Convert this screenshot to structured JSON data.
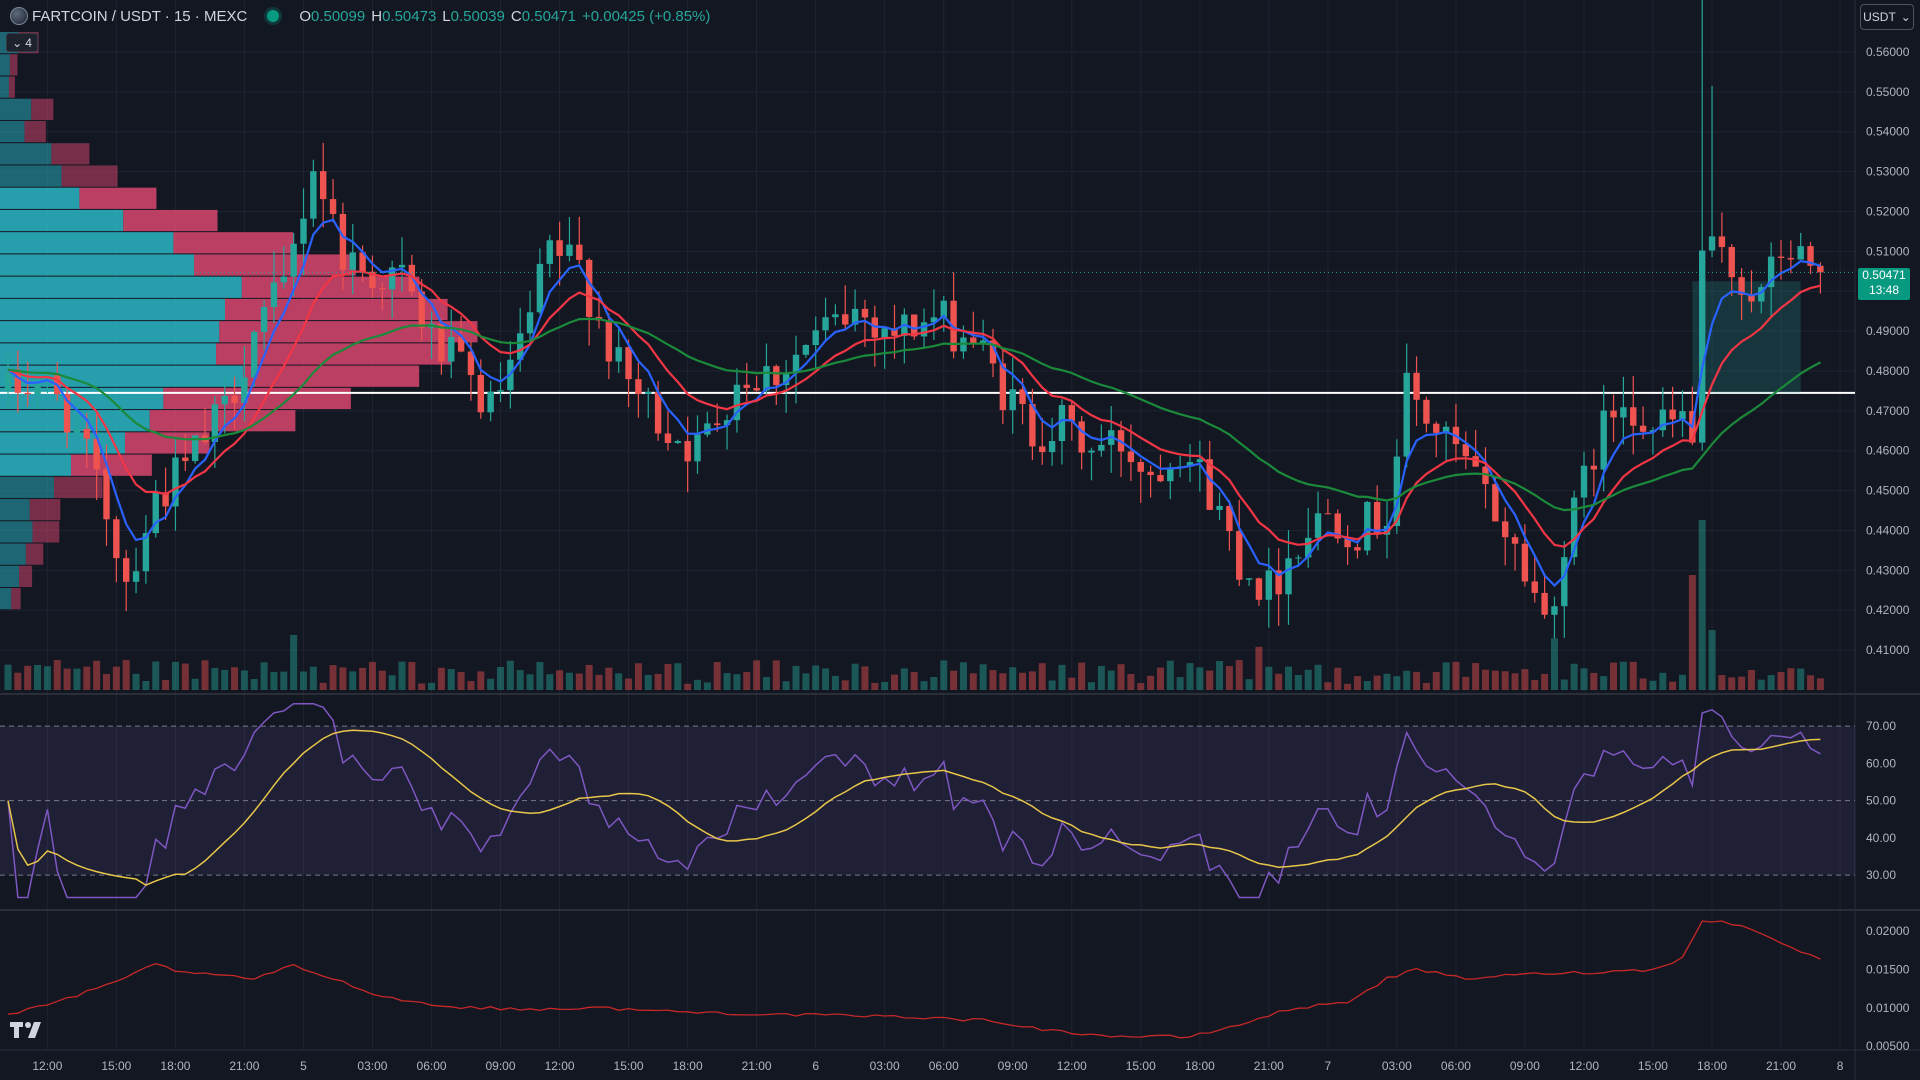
{
  "header": {
    "symbol": "FARTCOIN / USDT · 15 · MEXC",
    "open_label": "O",
    "open": "0.50099",
    "high_label": "H",
    "high": "0.50473",
    "low_label": "L",
    "low": "0.50039",
    "close_label": "C",
    "close": "0.50471",
    "change": "+0.00425 (+0.85%)"
  },
  "controls": {
    "collapse_count": "4",
    "currency": "USDT"
  },
  "last_price": {
    "price": "0.50471",
    "countdown": "13:48"
  },
  "colors": {
    "background": "#131722",
    "up": "#26a69a",
    "down": "#ef5350",
    "ema_fast": "#2962ff",
    "ema_mid": "#f23645",
    "ema_slow": "#1b8a3a",
    "rsi": "#7e57c2",
    "rsi_ma": "#e7c64a",
    "atr": "#c62828",
    "vp_up": "#2ab6c4",
    "vp_down": "#d9456f"
  },
  "icons": {
    "logo": "tradingview-logo-icon",
    "collapse": "chevron-down-icon",
    "currency": "chevron-down-icon"
  },
  "chart_data": [
    {
      "type": "candlestick",
      "price_axis": {
        "ticks": [
          "0.56000",
          "0.55000",
          "0.54000",
          "0.53000",
          "0.52000",
          "0.51000",
          "0.50000",
          "0.49000",
          "0.48000",
          "0.47000",
          "0.46000",
          "0.45000",
          "0.44000",
          "0.43000",
          "0.42000",
          "0.41000"
        ],
        "range": [
          0.4,
          0.565
        ]
      },
      "horizontal_line": 0.4745,
      "price_anchors": [
        [
          0,
          0.475
        ],
        [
          3,
          0.478
        ],
        [
          6,
          0.47
        ],
        [
          10,
          0.445
        ],
        [
          12,
          0.428
        ],
        [
          15,
          0.448
        ],
        [
          18,
          0.456
        ],
        [
          22,
          0.47
        ],
        [
          25,
          0.49
        ],
        [
          28,
          0.5
        ],
        [
          31,
          0.532
        ],
        [
          34,
          0.51
        ],
        [
          36,
          0.505
        ],
        [
          40,
          0.503
        ],
        [
          43,
          0.488
        ],
        [
          46,
          0.48
        ],
        [
          49,
          0.47
        ],
        [
          52,
          0.485
        ],
        [
          55,
          0.51
        ],
        [
          58,
          0.506
        ],
        [
          62,
          0.48
        ],
        [
          66,
          0.468
        ],
        [
          70,
          0.46
        ],
        [
          74,
          0.478
        ],
        [
          78,
          0.48
        ],
        [
          82,
          0.488
        ],
        [
          86,
          0.495
        ],
        [
          90,
          0.49
        ],
        [
          94,
          0.493
        ],
        [
          98,
          0.488
        ],
        [
          101,
          0.475
        ],
        [
          104,
          0.465
        ],
        [
          107,
          0.466
        ],
        [
          110,
          0.46
        ],
        [
          113,
          0.462
        ],
        [
          116,
          0.455
        ],
        [
          119,
          0.462
        ],
        [
          122,
          0.45
        ],
        [
          125,
          0.433
        ],
        [
          128,
          0.425
        ],
        [
          131,
          0.438
        ],
        [
          134,
          0.445
        ],
        [
          137,
          0.44
        ],
        [
          140,
          0.445
        ],
        [
          142,
          0.475
        ],
        [
          145,
          0.465
        ],
        [
          148,
          0.456
        ],
        [
          151,
          0.445
        ],
        [
          154,
          0.43
        ],
        [
          156,
          0.418
        ],
        [
          158,
          0.435
        ],
        [
          161,
          0.46
        ],
        [
          164,
          0.475
        ],
        [
          167,
          0.465
        ],
        [
          170,
          0.468
        ],
        [
          171,
          0.462
        ],
        [
          172,
          0.51
        ],
        [
          175,
          0.505
        ],
        [
          178,
          0.498
        ],
        [
          180,
          0.51
        ],
        [
          182,
          0.508
        ],
        [
          184,
          0.5047
        ]
      ],
      "ema_periods": [
        5,
        12,
        35
      ]
    },
    {
      "type": "line",
      "indicator": "RSI",
      "ticks": [
        "70.00",
        "60.00",
        "50.00",
        "40.00",
        "30.00"
      ],
      "range": [
        22,
        77
      ],
      "bands": [
        70,
        50,
        30
      ]
    },
    {
      "type": "line",
      "indicator": "ATR",
      "ticks": [
        "0.02000",
        "0.01500",
        "0.01000",
        "0.00500"
      ],
      "range": [
        0.0045,
        0.0225
      ],
      "anchors": [
        [
          0,
          0.009
        ],
        [
          5,
          0.0108
        ],
        [
          11,
          0.0133
        ],
        [
          15,
          0.0158
        ],
        [
          18,
          0.0145
        ],
        [
          22,
          0.0142
        ],
        [
          25,
          0.0138
        ],
        [
          29,
          0.0155
        ],
        [
          33,
          0.0138
        ],
        [
          38,
          0.0115
        ],
        [
          44,
          0.0102
        ],
        [
          52,
          0.0098
        ],
        [
          60,
          0.01
        ],
        [
          68,
          0.0095
        ],
        [
          76,
          0.0092
        ],
        [
          84,
          0.009
        ],
        [
          92,
          0.0088
        ],
        [
          100,
          0.0083
        ],
        [
          106,
          0.007
        ],
        [
          112,
          0.0063
        ],
        [
          120,
          0.0062
        ],
        [
          125,
          0.0078
        ],
        [
          130,
          0.0098
        ],
        [
          136,
          0.0108
        ],
        [
          140,
          0.0138
        ],
        [
          143,
          0.015
        ],
        [
          148,
          0.0138
        ],
        [
          152,
          0.0142
        ],
        [
          156,
          0.0145
        ],
        [
          160,
          0.0146
        ],
        [
          164,
          0.0148
        ],
        [
          167,
          0.015
        ],
        [
          170,
          0.0165
        ],
        [
          172,
          0.0215
        ],
        [
          175,
          0.021
        ],
        [
          178,
          0.0198
        ],
        [
          182,
          0.0172
        ],
        [
          184,
          0.0165
        ]
      ]
    }
  ],
  "time_axis": {
    "labels": [
      {
        "i": 4,
        "t": "12:00"
      },
      {
        "i": 11,
        "t": "15:00"
      },
      {
        "i": 17,
        "t": "18:00"
      },
      {
        "i": 24,
        "t": "21:00"
      },
      {
        "i": 30,
        "t": "5"
      },
      {
        "i": 37,
        "t": "03:00"
      },
      {
        "i": 43,
        "t": "06:00"
      },
      {
        "i": 50,
        "t": "09:00"
      },
      {
        "i": 56,
        "t": "12:00"
      },
      {
        "i": 63,
        "t": "15:00"
      },
      {
        "i": 69,
        "t": "18:00"
      },
      {
        "i": 76,
        "t": "21:00"
      },
      {
        "i": 82,
        "t": "6"
      },
      {
        "i": 89,
        "t": "03:00"
      },
      {
        "i": 95,
        "t": "06:00"
      },
      {
        "i": 102,
        "t": "09:00"
      },
      {
        "i": 108,
        "t": "12:00"
      },
      {
        "i": 115,
        "t": "15:00"
      },
      {
        "i": 121,
        "t": "18:00"
      },
      {
        "i": 128,
        "t": "21:00"
      },
      {
        "i": 134,
        "t": "7"
      },
      {
        "i": 141,
        "t": "03:00"
      },
      {
        "i": 147,
        "t": "06:00"
      },
      {
        "i": 154,
        "t": "09:00"
      },
      {
        "i": 160,
        "t": "12:00"
      },
      {
        "i": 167,
        "t": "15:00"
      },
      {
        "i": 173,
        "t": "18:00"
      },
      {
        "i": 180,
        "t": "21:00"
      },
      {
        "i": 186,
        "t": "8"
      }
    ]
  }
}
